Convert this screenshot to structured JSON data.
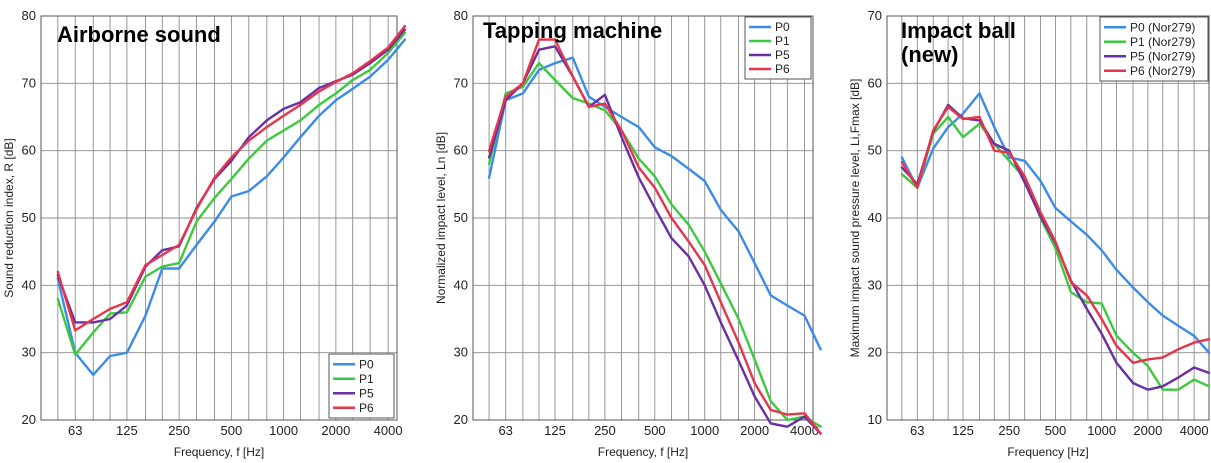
{
  "colors": {
    "P0": "#3b8beb",
    "P1": "#3dc93d",
    "P5": "#6a2fa0",
    "P6": "#e8344a"
  },
  "chart_data": [
    {
      "type": "line",
      "title": "Airborne sound",
      "xlabel": "Frequency, f [Hz]",
      "ylabel": "Sound reduction index, R [dB]",
      "ylim": [
        20,
        80
      ],
      "yticks": [
        "20",
        "30",
        "40",
        "50",
        "60",
        "70",
        "80"
      ],
      "xlim": [
        40,
        4500
      ],
      "xtick_labels": [
        "63",
        "125",
        "250",
        "500",
        "1000",
        "2000",
        "4000"
      ],
      "grid": true,
      "legend_position": "bottom-right",
      "x": [
        50,
        63,
        80,
        100,
        125,
        160,
        200,
        250,
        315,
        400,
        500,
        630,
        800,
        1000,
        1250,
        1600,
        2000,
        2500,
        3150,
        4000,
        5000
      ],
      "series": [
        {
          "name": "P0",
          "values": [
            41,
            30,
            26.7,
            29.5,
            30,
            35.5,
            42.5,
            42.5,
            46,
            49.5,
            53.2,
            54,
            56.2,
            59,
            62,
            65.2,
            67.5,
            69.2,
            71,
            73.5,
            76.5
          ]
        },
        {
          "name": "P1",
          "values": [
            38,
            29.7,
            33,
            35.8,
            36,
            41.3,
            42.8,
            43.3,
            49.5,
            53,
            55.8,
            58.8,
            61.5,
            63,
            64.5,
            66.8,
            68.5,
            70.5,
            72,
            74.5,
            77.5
          ]
        },
        {
          "name": "P5",
          "values": [
            41.5,
            34.5,
            34.5,
            35,
            37,
            42.8,
            45.2,
            45.8,
            51.5,
            55.8,
            58.5,
            62,
            64.5,
            66.2,
            67.2,
            69.3,
            70.3,
            71.3,
            73,
            75,
            78
          ]
        },
        {
          "name": "P6",
          "values": [
            42,
            33.3,
            35,
            36.5,
            37.5,
            43,
            44.5,
            46,
            51.3,
            56,
            59,
            61.5,
            63.5,
            65.2,
            66.8,
            68.8,
            70.2,
            71.5,
            73.3,
            75.3,
            78.5
          ]
        }
      ]
    },
    {
      "type": "line",
      "title": "Tapping machine",
      "xlabel": "Frequency, f [Hz]",
      "ylabel": "Normalized impact level, Ln [dB]",
      "ylim": [
        20,
        80
      ],
      "yticks": [
        "20",
        "30",
        "40",
        "50",
        "60",
        "70",
        "80"
      ],
      "xlim": [
        40,
        4500
      ],
      "xtick_labels": [
        "63",
        "125",
        "250",
        "500",
        "1000",
        "2000",
        "4000"
      ],
      "grid": true,
      "legend_position": "top-right",
      "x": [
        50,
        63,
        80,
        100,
        125,
        160,
        200,
        250,
        315,
        400,
        500,
        630,
        800,
        1000,
        1250,
        1600,
        2000,
        2500,
        3150,
        4000,
        5000
      ],
      "series": [
        {
          "name": "P0",
          "values": [
            56,
            67.5,
            68.5,
            72,
            73,
            73.8,
            68,
            66.5,
            65,
            63.5,
            60.5,
            59.2,
            57.3,
            55.5,
            51.2,
            48,
            43.3,
            38.5,
            37,
            35.5,
            30.5
          ]
        },
        {
          "name": "P1",
          "values": [
            58,
            68.5,
            69.5,
            73,
            70.5,
            67.8,
            67,
            66,
            63,
            58.8,
            56.2,
            52,
            49,
            45,
            40.3,
            35,
            29,
            22.8,
            20,
            20.5,
            19
          ]
        },
        {
          "name": "P5",
          "values": [
            59,
            67.5,
            70,
            75,
            75.5,
            71,
            66.5,
            68.3,
            62,
            56,
            51.5,
            47,
            44.3,
            40,
            34.5,
            28.8,
            23.5,
            19.5,
            19,
            20.5,
            18
          ]
        },
        {
          "name": "P6",
          "values": [
            60,
            68,
            70,
            76.5,
            76.5,
            71,
            66.5,
            67,
            63,
            57.5,
            54.5,
            50,
            46.5,
            43,
            37.5,
            31.5,
            25.5,
            21.5,
            20.8,
            21,
            18
          ]
        }
      ]
    },
    {
      "type": "line",
      "title": "Impact ball",
      "subtitle": "(new)",
      "xlabel": "Frequency [Hz]",
      "ylabel": "Maximum impact sound pressure level, Li,Fmax [dB]",
      "ylim": [
        10,
        70
      ],
      "yticks": [
        "10",
        "20",
        "30",
        "40",
        "50",
        "60",
        "70"
      ],
      "xlim": [
        40,
        5000
      ],
      "xtick_labels": [
        "63",
        "125",
        "250",
        "500",
        "1000",
        "2000",
        "4000"
      ],
      "grid": true,
      "legend_position": "top-right",
      "x": [
        50,
        63,
        80,
        100,
        125,
        160,
        200,
        250,
        315,
        400,
        500,
        630,
        800,
        1000,
        1250,
        1600,
        2000,
        2500,
        3150,
        4000,
        5000
      ],
      "series": [
        {
          "name": "P0 (Nor279)",
          "values": [
            49,
            44.5,
            50.3,
            53.5,
            55.5,
            58.5,
            53.5,
            49,
            48.5,
            45.5,
            41.5,
            39.5,
            37.5,
            35.2,
            32.3,
            29.7,
            27.5,
            25.5,
            24,
            22.5,
            20
          ]
        },
        {
          "name": "P1 (Nor279)",
          "values": [
            46.5,
            44.5,
            52.5,
            55,
            52,
            54,
            51,
            48.5,
            46,
            40,
            35.5,
            29,
            27.5,
            27.3,
            22.5,
            20,
            18,
            14.5,
            14.5,
            16,
            15
          ]
        },
        {
          "name": "P5 (Nor279)",
          "values": [
            47.5,
            45,
            52.8,
            56.8,
            54.8,
            54.5,
            51,
            50,
            45.3,
            40.2,
            36.3,
            30.7,
            26.5,
            22.8,
            18.5,
            15.5,
            14.5,
            15,
            16.3,
            17.8,
            17
          ]
        },
        {
          "name": "P6 (Nor279)",
          "values": [
            48.3,
            44.5,
            53,
            56.5,
            54.7,
            55,
            50,
            49.7,
            46.2,
            40.8,
            36.5,
            30.5,
            28.5,
            25,
            21,
            18.5,
            19,
            19.3,
            20.5,
            21.5,
            22
          ]
        }
      ]
    }
  ]
}
